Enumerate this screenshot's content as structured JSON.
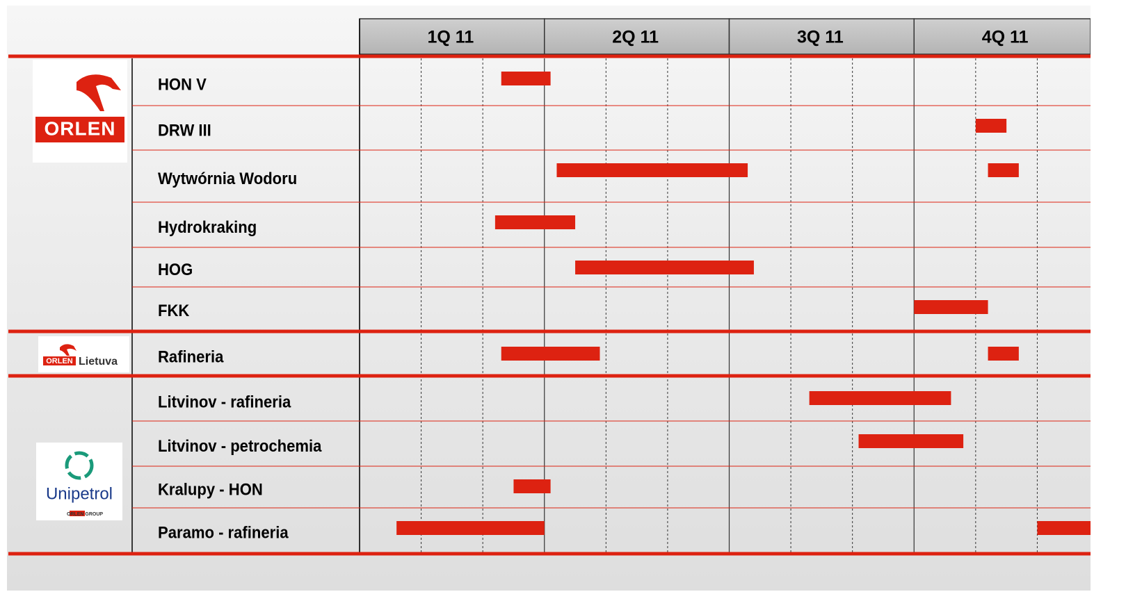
{
  "chart_data": {
    "type": "gantt",
    "periods": [
      {
        "label": "1Q 11",
        "start": 0,
        "end": 3
      },
      {
        "label": "2Q 11",
        "start": 3,
        "end": 6
      },
      {
        "label": "3Q 11",
        "start": 6,
        "end": 9
      },
      {
        "label": "4Q 11",
        "start": 9,
        "end": 12
      }
    ],
    "xlim": [
      0,
      12
    ],
    "xticks": [
      0,
      3,
      6,
      9,
      12
    ],
    "minor_xticks": [
      1,
      2,
      4,
      5,
      7,
      8,
      10,
      11
    ],
    "color": "#dd2211",
    "groups": [
      {
        "logo": "ORLEN",
        "tasks": [
          {
            "name": "HON V",
            "bars": [
              {
                "start": 2.3,
                "end": 3.1
              }
            ]
          },
          {
            "name": "DRW III",
            "bars": [
              {
                "start": 10.0,
                "end": 10.5
              }
            ]
          },
          {
            "name": "Wytwórnia Wodoru",
            "bars": [
              {
                "start": 3.2,
                "end": 6.3
              },
              {
                "start": 10.2,
                "end": 10.7
              }
            ]
          },
          {
            "name": "Hydrokraking",
            "bars": [
              {
                "start": 2.2,
                "end": 3.5
              }
            ]
          },
          {
            "name": "HOG",
            "bars": [
              {
                "start": 3.5,
                "end": 6.4
              }
            ]
          },
          {
            "name": "FKK",
            "bars": [
              {
                "start": 9.0,
                "end": 10.2
              }
            ]
          }
        ]
      },
      {
        "logo": "ORLEN",
        "logo_sub": "Lietuva",
        "tasks": [
          {
            "name": "Rafineria",
            "bars": [
              {
                "start": 2.3,
                "end": 3.9
              },
              {
                "start": 10.2,
                "end": 10.7
              }
            ]
          }
        ]
      },
      {
        "logo": "Unipetrol",
        "logo_sub": "ORLEN GROUP",
        "tasks": [
          {
            "name": "Litvinov - rafineria",
            "bars": [
              {
                "start": 7.3,
                "end": 9.6
              }
            ]
          },
          {
            "name": "Litvinov - petrochemia",
            "bars": [
              {
                "start": 8.1,
                "end": 9.8
              }
            ]
          },
          {
            "name": "Kralupy - HON",
            "bars": [
              {
                "start": 2.5,
                "end": 3.1
              }
            ]
          },
          {
            "name": "Paramo - rafineria",
            "bars": [
              {
                "start": 0.6,
                "end": 3.0
              },
              {
                "start": 11.0,
                "end": 12.0
              }
            ]
          }
        ]
      }
    ]
  }
}
